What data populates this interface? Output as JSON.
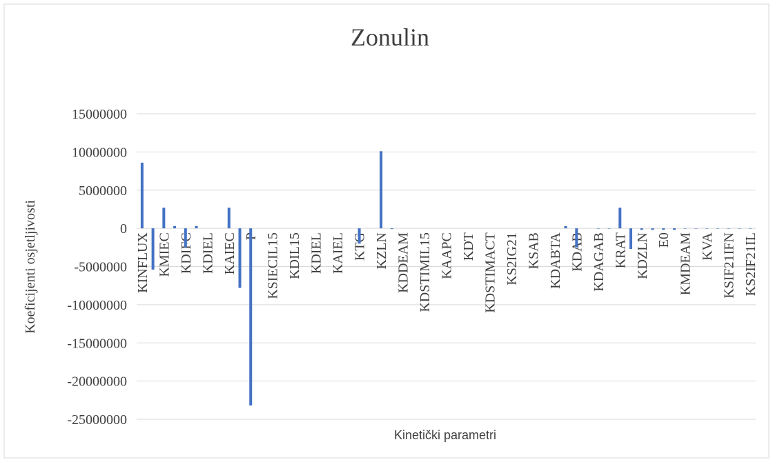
{
  "chart_data": {
    "type": "bar",
    "title": "Zonulin",
    "y_label": "Koeficijenti osjetljivosti",
    "x_label": "Kinetički parametri",
    "categories": [
      "KINFLUX",
      null,
      "KMIEC",
      null,
      "KDIFC",
      null,
      "KDIEL",
      null,
      "KAIEC",
      null,
      "P",
      null,
      "KSIECIL15",
      null,
      "KDIL15",
      null,
      "KDIEL",
      null,
      "KAIEL",
      null,
      "KTG",
      null,
      "KZLN",
      null,
      "KDDEAM",
      null,
      "KDSTIMIL15",
      null,
      "KAAPC",
      null,
      "KDT",
      null,
      "KDSTIMACT",
      null,
      "KS2IG21",
      null,
      "KSAB",
      null,
      "KDABTA",
      null,
      "KDAB",
      null,
      "KDAGAB",
      null,
      "KRAT",
      null,
      "KDZLN",
      null,
      "E0",
      null,
      "KMDEAM",
      null,
      "KVA",
      null,
      "KSIF21IFN",
      null,
      "KS2IF21IL"
    ],
    "values": [
      8600000,
      -5400000,
      2700000,
      300000,
      -2500000,
      300000,
      0,
      0,
      2700000,
      -7800000,
      -23200000,
      0,
      0,
      0,
      0,
      0,
      0,
      0,
      0,
      0,
      -2000000,
      0,
      10100000,
      -100000,
      0,
      0,
      0,
      0,
      0,
      0,
      0,
      0,
      0,
      0,
      0,
      0,
      0,
      0,
      0,
      300000,
      -2500000,
      0,
      -50000,
      -50000,
      2700000,
      -2700000,
      -200000,
      -200000,
      -200000,
      -200000,
      -50000,
      -50000,
      -50000,
      -50000,
      -50000,
      -50000,
      -50000
    ],
    "color": "#4472c4",
    "ylim": [
      -25000000,
      15000000
    ],
    "yticks": [
      -25000000,
      -20000000,
      -15000000,
      -10000000,
      -5000000,
      0,
      5000000,
      10000000,
      15000000
    ],
    "grid": true
  }
}
